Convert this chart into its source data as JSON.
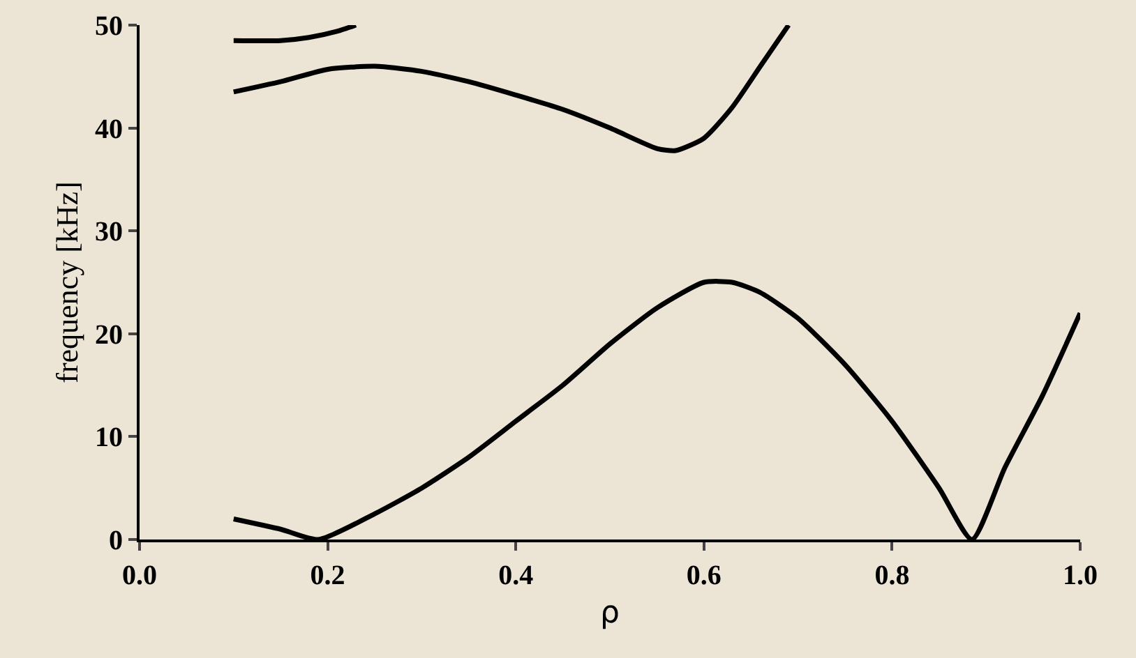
{
  "chart_data": {
    "type": "line",
    "xlabel": "ρ",
    "ylabel": "frequency [kHz]",
    "xlim": [
      0,
      1
    ],
    "xticks": [
      {
        "value": 0,
        "label": "0.0"
      },
      {
        "value": 0.2,
        "label": "0.2"
      },
      {
        "value": 0.4,
        "label": "0.4"
      },
      {
        "value": 0.6,
        "label": "0.6"
      },
      {
        "value": 0.8,
        "label": "0.8"
      },
      {
        "value": 1,
        "label": "1.0"
      }
    ],
    "ylim": [
      0,
      50
    ],
    "yticks": [
      0,
      10,
      20,
      30,
      40,
      50
    ],
    "grid": false,
    "marker": "none",
    "line_style": "solid",
    "series": [
      {
        "color": "#000000",
        "x": [
          0.1,
          0.15,
          0.18,
          0.21,
          0.23
        ],
        "values": [
          48.5,
          48.5,
          48.8,
          49.4,
          50
        ]
      },
      {
        "color": "#000000",
        "x": [
          0.1,
          0.15,
          0.2,
          0.25,
          0.3,
          0.35,
          0.4,
          0.45,
          0.5,
          0.55,
          0.57,
          0.6,
          0.63,
          0.66,
          0.69
        ],
        "values": [
          43.5,
          44.5,
          45.7,
          46,
          45.5,
          44.5,
          43.2,
          41.8,
          40,
          38,
          37.8,
          39,
          42,
          46,
          50
        ]
      },
      {
        "color": "#000000",
        "x": [
          0.1,
          0.15,
          0.19,
          0.25,
          0.3,
          0.35,
          0.4,
          0.45,
          0.5,
          0.55,
          0.6,
          0.63,
          0.66,
          0.7,
          0.75,
          0.8,
          0.85,
          0.885,
          0.92,
          0.96,
          1.0
        ],
        "values": [
          2,
          1,
          0,
          2.5,
          5,
          8,
          11.5,
          15,
          19,
          22.5,
          25,
          25,
          24,
          21.5,
          17,
          11.5,
          5,
          0,
          7,
          14,
          22
        ]
      }
    ]
  }
}
